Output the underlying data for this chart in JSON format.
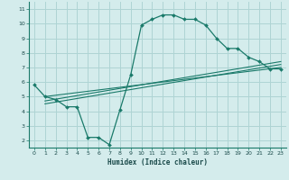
{
  "title": "",
  "xlabel": "Humidex (Indice chaleur)",
  "bg_color": "#d4ecec",
  "grid_color": "#aed4d4",
  "line_color": "#1a7a6a",
  "marker_color": "#1a7a6a",
  "xlim": [
    -0.5,
    23.5
  ],
  "ylim": [
    1.5,
    11.5
  ],
  "xticks": [
    0,
    1,
    2,
    3,
    4,
    5,
    6,
    7,
    8,
    9,
    10,
    11,
    12,
    13,
    14,
    15,
    16,
    17,
    18,
    19,
    20,
    21,
    22,
    23
  ],
  "yticks": [
    2,
    3,
    4,
    5,
    6,
    7,
    8,
    9,
    10,
    11
  ],
  "main_x": [
    0,
    1,
    2,
    3,
    4,
    5,
    6,
    7,
    8,
    9,
    10,
    11,
    12,
    13,
    14,
    15,
    16,
    17,
    18,
    19,
    20,
    21,
    22,
    23
  ],
  "main_y": [
    5.8,
    5.0,
    4.8,
    4.3,
    4.3,
    2.2,
    2.2,
    1.7,
    4.1,
    6.5,
    9.9,
    10.3,
    10.6,
    10.6,
    10.3,
    10.3,
    9.9,
    9.0,
    8.3,
    8.3,
    7.7,
    7.4,
    6.9,
    6.9
  ],
  "line2_x": [
    1,
    23
  ],
  "line2_y": [
    5.0,
    7.0
  ],
  "line3_x": [
    1,
    23
  ],
  "line3_y": [
    4.7,
    7.4
  ],
  "line4_x": [
    1,
    23
  ],
  "line4_y": [
    4.5,
    7.2
  ]
}
